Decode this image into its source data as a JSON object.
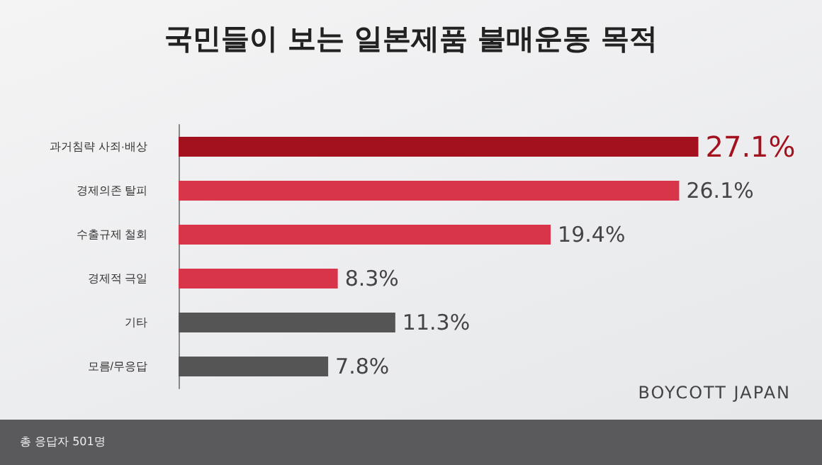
{
  "chart_data": {
    "type": "bar",
    "orientation": "horizontal",
    "title": "국민들이 보는 일본제품 불매운동 목적",
    "categories": [
      "과거침략 사죄·배상",
      "경제의존 탈피",
      "수출규제 철회",
      "경제적 극일",
      "기타",
      "모름/무응답"
    ],
    "values": [
      27.1,
      26.1,
      19.4,
      8.3,
      11.3,
      7.8
    ],
    "colors": [
      "#a3111e",
      "#d9354a",
      "#d9354a",
      "#d9354a",
      "#555555",
      "#555555"
    ],
    "value_labels": [
      "27.1%",
      "26.1%",
      "19.4%",
      "8.3%",
      "11.3%",
      "7.8%"
    ],
    "annotations": [
      "BOYCOTT JAPAN",
      "총 응답자 501명"
    ]
  }
}
